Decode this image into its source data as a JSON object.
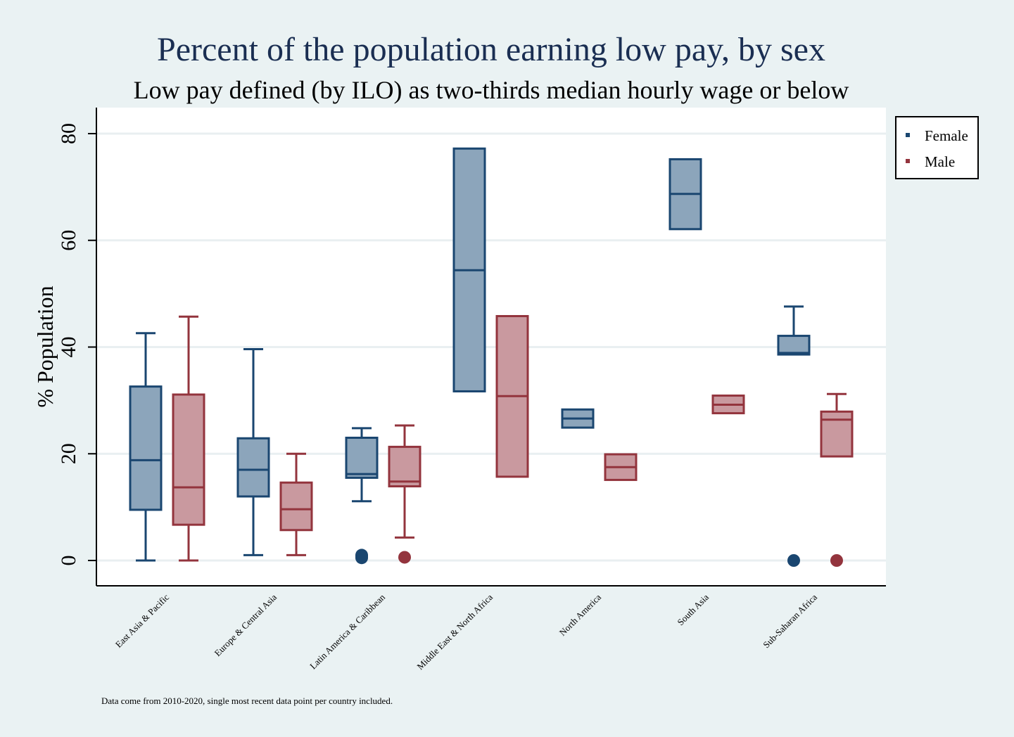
{
  "chart_data": {
    "type": "box",
    "title": "Percent of the population earning low pay, by sex",
    "subtitle": "Low pay defined (by ILO) as two-thirds median hourly wage or below",
    "ylabel": "% Population",
    "xlabel": "",
    "ylim": [
      -4.7,
      85
    ],
    "yticks": [
      0,
      20,
      40,
      60,
      80
    ],
    "grid": true,
    "legend_position": "right-top",
    "note": "Data come from 2010-2020, single most recent data point per country included.",
    "categories": [
      "East Asia & Pacific",
      "Europe & Central Asia",
      "Latin America & Caribbean",
      "Middle East & North Africa",
      "North America",
      "South Asia",
      "Sub-Saharan Africa"
    ],
    "series": [
      {
        "name": "Female",
        "stroke": "#1a4670",
        "fill": "#8ca5bb",
        "boxes": [
          {
            "whisker_low": 0,
            "q1": 9.5,
            "median": 18.8,
            "q3": 32.6,
            "whisker_high": 42.6,
            "outliers": []
          },
          {
            "whisker_low": 1.0,
            "q1": 12.0,
            "median": 17.0,
            "q3": 22.9,
            "whisker_high": 39.6,
            "outliers": []
          },
          {
            "whisker_low": 11.1,
            "q1": 15.5,
            "median": 16.2,
            "q3": 23.0,
            "whisker_high": 24.8,
            "outliers": [
              0.5,
              0.8,
              1.0
            ]
          },
          {
            "whisker_low": 31.7,
            "q1": 31.7,
            "median": 54.4,
            "q3": 77.2,
            "whisker_high": 77.2,
            "outliers": []
          },
          {
            "whisker_low": 24.9,
            "q1": 24.9,
            "median": 26.6,
            "q3": 28.3,
            "whisker_high": 28.3,
            "outliers": []
          },
          {
            "whisker_low": 62.1,
            "q1": 62.1,
            "median": 68.7,
            "q3": 75.2,
            "whisker_high": 75.2,
            "outliers": []
          },
          {
            "whisker_low": 38.6,
            "q1": 38.6,
            "median": 38.9,
            "q3": 42.1,
            "whisker_high": 47.6,
            "outliers": [
              0
            ]
          }
        ]
      },
      {
        "name": "Male",
        "stroke": "#93343d",
        "fill": "#c9999f",
        "boxes": [
          {
            "whisker_low": 0,
            "q1": 6.7,
            "median": 13.7,
            "q3": 31.1,
            "whisker_high": 45.7,
            "outliers": []
          },
          {
            "whisker_low": 1.0,
            "q1": 5.7,
            "median": 9.6,
            "q3": 14.6,
            "whisker_high": 20.0,
            "outliers": []
          },
          {
            "whisker_low": 4.3,
            "q1": 13.9,
            "median": 14.8,
            "q3": 21.3,
            "whisker_high": 25.3,
            "outliers": [
              0.6
            ]
          },
          {
            "whisker_low": 15.7,
            "q1": 15.7,
            "median": 30.8,
            "q3": 45.8,
            "whisker_high": 45.8,
            "outliers": []
          },
          {
            "whisker_low": 15.1,
            "q1": 15.1,
            "median": 17.5,
            "q3": 19.9,
            "whisker_high": 19.9,
            "outliers": []
          },
          {
            "whisker_low": 27.6,
            "q1": 27.6,
            "median": 29.2,
            "q3": 30.9,
            "whisker_high": 30.9,
            "outliers": []
          },
          {
            "whisker_low": 19.5,
            "q1": 19.5,
            "median": 26.4,
            "q3": 27.9,
            "whisker_high": 31.2,
            "outliers": [
              0
            ]
          }
        ]
      }
    ]
  }
}
